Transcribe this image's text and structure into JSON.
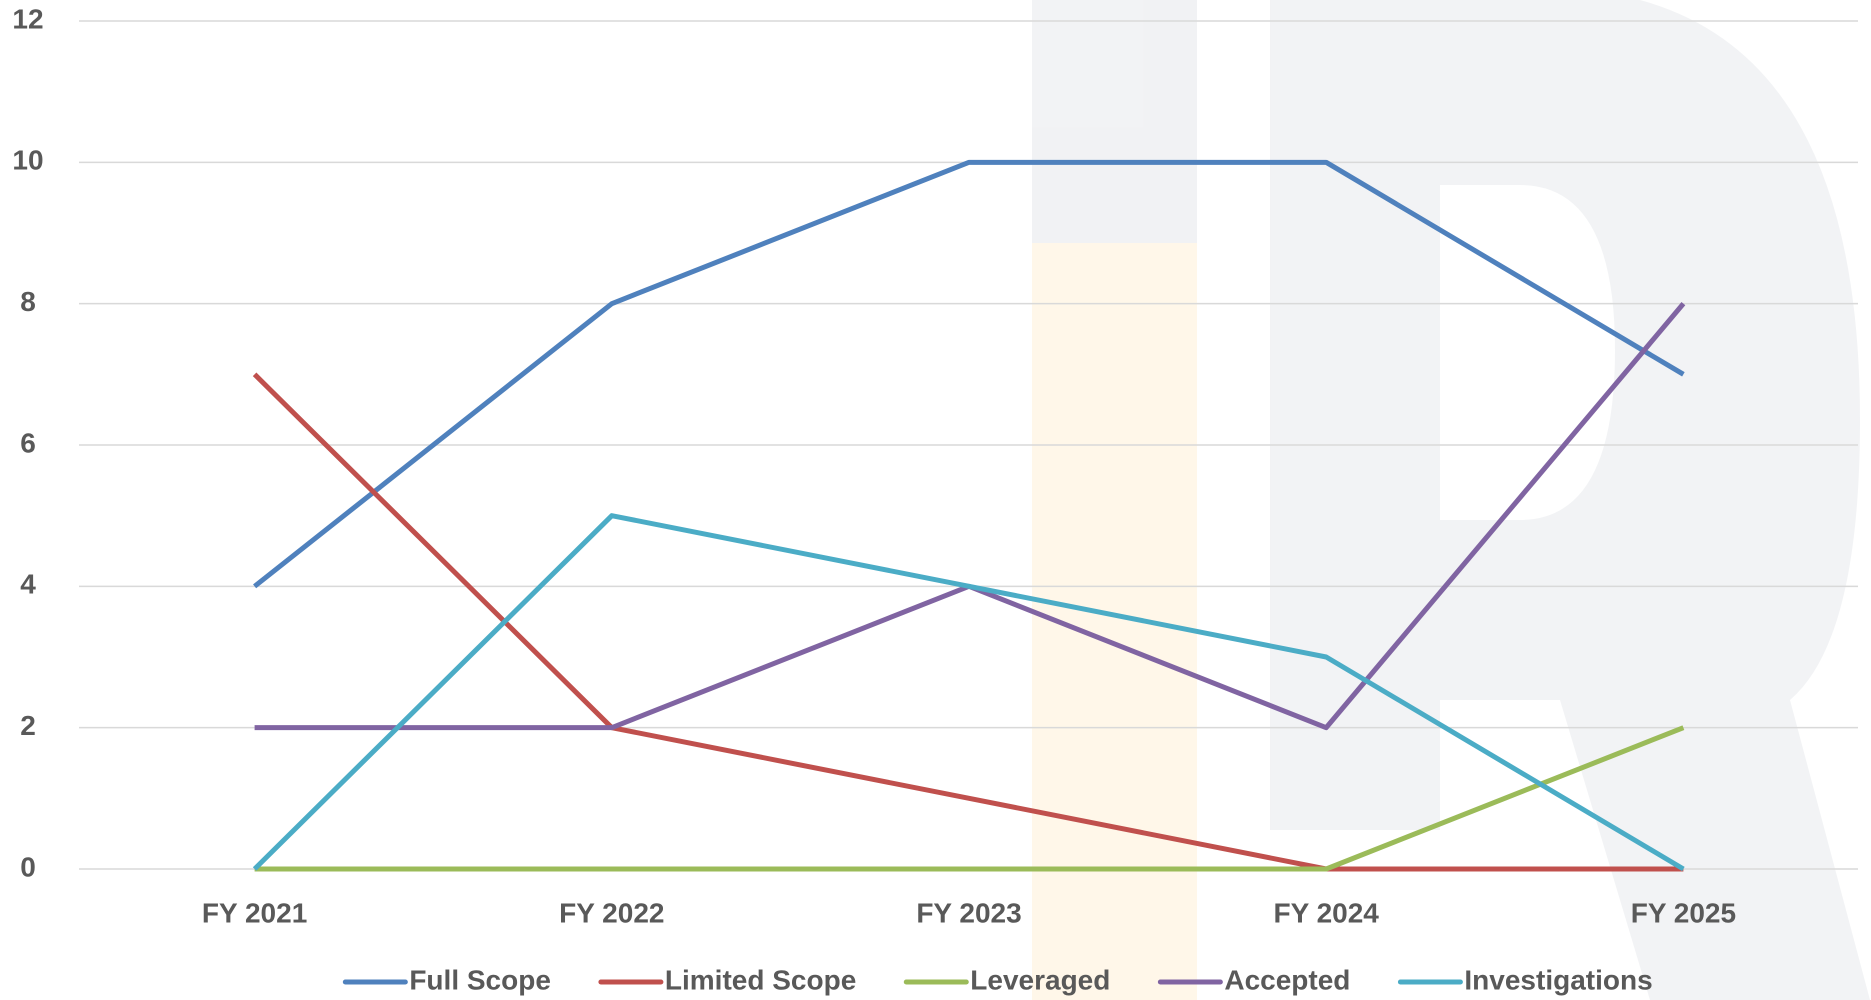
{
  "chart_data": {
    "type": "line",
    "categories": [
      "FY 2021",
      "FY 2022",
      "FY 2023",
      "FY 2024",
      "FY 2025"
    ],
    "series": [
      {
        "name": "Full Scope",
        "color": "#4f81bd",
        "values": [
          4,
          8,
          10,
          10,
          7
        ]
      },
      {
        "name": "Limited Scope",
        "color": "#c0504d",
        "values": [
          7,
          2,
          1,
          0,
          0
        ]
      },
      {
        "name": "Leveraged",
        "color": "#9bbb59",
        "values": [
          0,
          0,
          0,
          0,
          2
        ]
      },
      {
        "name": "Accepted",
        "color": "#8064a2",
        "values": [
          2,
          2,
          4,
          2,
          8
        ]
      },
      {
        "name": "Investigations",
        "color": "#4bacc6",
        "values": [
          0,
          5,
          4,
          3,
          0
        ]
      }
    ],
    "ylim": [
      0,
      12
    ],
    "yticks": [
      0,
      2,
      4,
      6,
      8,
      10,
      12
    ],
    "grid": true,
    "legend": "bottom"
  }
}
